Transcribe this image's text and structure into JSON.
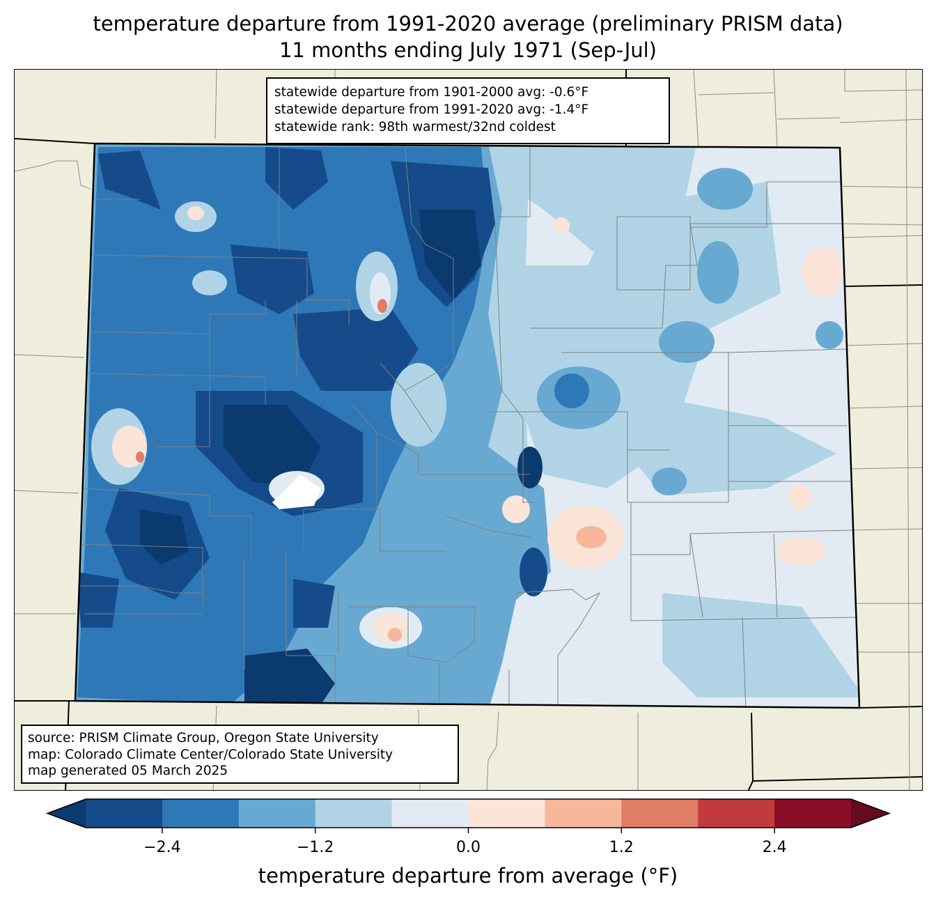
{
  "title": {
    "line1": "temperature departure from 1991-2020 average (preliminary PRISM data)",
    "line2": "11 months ending July 1971 (Sep-Jul)"
  },
  "stats": {
    "line1": "statewide departure from 1901-2000 avg: -0.6°F",
    "line2": "statewide departure from 1991-2020 avg: -1.4°F",
    "line3": "statewide rank: 98th warmest/32nd coldest"
  },
  "source": {
    "line1": "source: PRISM Climate Group, Oregon State University",
    "line2": "map: Colorado Climate Center/Colorado State University",
    "line3": "map generated 05 March 2025"
  },
  "colorbar": {
    "label": "temperature departure from average (°F)",
    "ticks": [
      "−2.4",
      "−1.2",
      "0.0",
      "1.2",
      "2.4"
    ],
    "tick_values": [
      -2.4,
      -1.2,
      0.0,
      1.2,
      2.4
    ],
    "levels": [
      -3.0,
      -2.4,
      -1.8,
      -1.2,
      -0.6,
      0.0,
      0.6,
      1.2,
      1.8,
      2.4,
      3.0
    ],
    "colors": [
      "#0b3a6e",
      "#154b8a",
      "#2e78b8",
      "#68a9d1",
      "#b0d4e6",
      "#e2ebf3",
      "#fbe4d8",
      "#f7b79b",
      "#e07e66",
      "#c13a3c",
      "#8c0d25",
      "#660a1f"
    ],
    "extend": "both"
  },
  "colors": {
    "land": "#efeedd",
    "state_border": "#000000",
    "county_border": "#808080"
  }
}
